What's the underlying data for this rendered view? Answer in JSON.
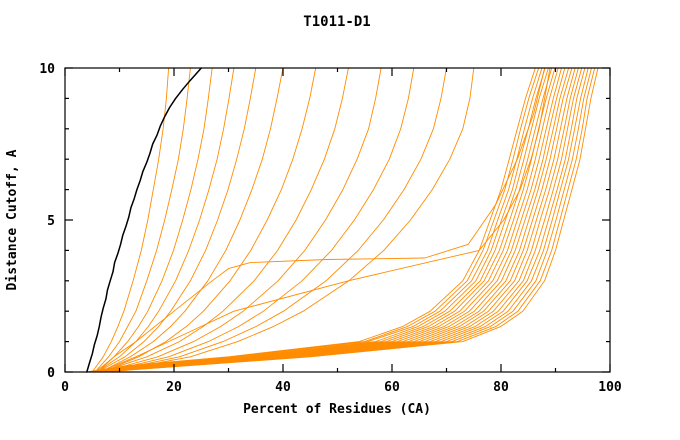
{
  "figure": {
    "title": "T1011-D1"
  },
  "chart_data": {
    "type": "line",
    "title": "T1011-D1",
    "xlabel": "Percent of Residues (CA)",
    "ylabel": "Distance Cutoff, A",
    "xlim": [
      0,
      100
    ],
    "ylim": [
      0,
      10
    ],
    "grid": false,
    "legend": "none",
    "colors": {
      "model": "#ff8c00",
      "reference": "#000000",
      "axis": "#000000"
    },
    "x_ticks": {
      "major": [
        0,
        20,
        40,
        60,
        80,
        100
      ],
      "minor": [
        10,
        30,
        50,
        70,
        90
      ],
      "labels": [
        "0",
        "20",
        "40",
        "60",
        "80",
        "100"
      ]
    },
    "y_ticks": {
      "major": [
        0,
        5,
        10
      ],
      "minor": [
        1,
        2,
        3,
        4,
        6,
        7,
        8,
        9
      ],
      "labels": [
        "0",
        "5",
        "10"
      ]
    },
    "y_levels": [
      0,
      0.2,
      0.5,
      1,
      1.5,
      2,
      3,
      4,
      5,
      6,
      7,
      8,
      9,
      10
    ],
    "series": [
      {
        "name": "reference",
        "role": "reference",
        "y": [
          0,
          0.3,
          0.6,
          0.9,
          1.2,
          1.5,
          1.8,
          2.1,
          2.4,
          2.7,
          3.0,
          3.3,
          3.6,
          3.9,
          4.2,
          4.5,
          4.8,
          5.1,
          5.4,
          5.7,
          6.0,
          6.3,
          6.6,
          6.9,
          7.2,
          7.5,
          7.8,
          8.1,
          8.4,
          8.7,
          9.0,
          9.3,
          9.6,
          10
        ],
        "x": [
          4.0,
          4.5,
          5.0,
          5.4,
          5.9,
          6.3,
          6.6,
          7.0,
          7.5,
          7.8,
          8.3,
          8.8,
          9.1,
          9.7,
          10.2,
          10.6,
          11.2,
          11.7,
          12.1,
          12.7,
          13.2,
          13.8,
          14.3,
          15.0,
          15.6,
          16.1,
          16.9,
          17.5,
          18.3,
          19.2,
          20.3,
          21.6,
          23.0,
          25.0
        ]
      },
      {
        "name": "model-01",
        "role": "model",
        "x": [
          5.0,
          5.8,
          7.0,
          8.5,
          9.7,
          10.8,
          12.5,
          14.0,
          15.2,
          16.2,
          17.2,
          18.0,
          18.6,
          19.0
        ]
      },
      {
        "name": "model-02",
        "role": "model",
        "x": [
          5.5,
          6.5,
          8.0,
          10.0,
          11.5,
          13.0,
          15.0,
          16.8,
          18.3,
          19.6,
          20.8,
          21.7,
          22.4,
          23.0
        ]
      },
      {
        "name": "model-03",
        "role": "model",
        "x": [
          5.5,
          7.0,
          9.0,
          11.5,
          13.5,
          15.2,
          17.8,
          19.9,
          21.6,
          23.1,
          24.4,
          25.5,
          26.3,
          27.0
        ]
      },
      {
        "name": "model-04",
        "role": "model",
        "x": [
          6.0,
          7.5,
          10.0,
          13.0,
          15.3,
          17.2,
          20.3,
          22.7,
          24.7,
          26.4,
          27.9,
          29.1,
          30.1,
          31.0
        ]
      },
      {
        "name": "model-05",
        "role": "model",
        "x": [
          6.0,
          8.0,
          11.0,
          14.5,
          17.2,
          19.4,
          23.0,
          25.8,
          28.0,
          29.9,
          31.5,
          32.9,
          34.0,
          35.0
        ]
      },
      {
        "name": "model-06",
        "role": "model",
        "x": [
          6.5,
          8.7,
          12.0,
          16.2,
          19.4,
          22.0,
          26.2,
          29.5,
          32.1,
          34.3,
          36.2,
          37.7,
          38.9,
          40.0
        ]
      },
      {
        "name": "model-07",
        "role": "model",
        "x": [
          7.0,
          9.5,
          13.5,
          18.5,
          22.3,
          25.4,
          30.3,
          34.1,
          37.1,
          39.7,
          41.8,
          43.5,
          44.9,
          46.0
        ]
      },
      {
        "name": "model-08",
        "role": "model",
        "x": [
          7.0,
          10.0,
          15.0,
          21.0,
          25.4,
          29.0,
          34.7,
          39.0,
          42.4,
          45.2,
          47.6,
          49.5,
          50.9,
          52.0
        ]
      },
      {
        "name": "model-09",
        "role": "model",
        "x": [
          7.5,
          11.0,
          17.0,
          23.6,
          28.6,
          32.7,
          39.1,
          44.0,
          47.8,
          51.0,
          53.6,
          55.7,
          57.0,
          58.0
        ]
      },
      {
        "name": "model-10",
        "role": "model",
        "x": [
          8.0,
          12.0,
          19.0,
          26.3,
          31.9,
          36.4,
          43.5,
          48.9,
          53.1,
          56.6,
          59.5,
          61.6,
          63.0,
          64.0
        ]
      },
      {
        "name": "model-11",
        "role": "model",
        "x": [
          8.0,
          13.0,
          21.0,
          29.0,
          35.1,
          40.1,
          47.9,
          53.8,
          58.4,
          62.2,
          65.3,
          67.6,
          69.0,
          70.0
        ]
      },
      {
        "name": "model-12",
        "role": "model",
        "x": [
          8.5,
          14.0,
          23.0,
          31.7,
          38.3,
          43.7,
          52.1,
          58.5,
          63.4,
          67.4,
          70.6,
          73.0,
          74.3,
          75.0
        ]
      },
      {
        "name": "model-13",
        "role": "model",
        "y": [
          0,
          0.5,
          1,
          2,
          3,
          3.4,
          3.6,
          3.7,
          3.75,
          4.2,
          5.5,
          7,
          8.5,
          10
        ],
        "x": [
          6.0,
          9.0,
          13.0,
          20.0,
          27.0,
          30.0,
          34.0,
          48.0,
          66.0,
          74.0,
          79.0,
          83.0,
          86.0,
          88.0
        ]
      },
      {
        "name": "model-14",
        "role": "model",
        "x": [
          6.5,
          9.0,
          13.0,
          19.0,
          25.0,
          31.0,
          52.0,
          76.0,
          80.5,
          83.5,
          85.5,
          87.0,
          88.0,
          89.0
        ]
      },
      {
        "name": "model-15",
        "role": "model",
        "x": [
          4.0,
          11.0,
          30.0,
          54.0,
          62.0,
          67.0,
          73.0,
          76.0,
          78.0,
          80.0,
          81.5,
          83.0,
          84.5,
          86.3
        ]
      },
      {
        "name": "model-16",
        "role": "model",
        "x": [
          4.2,
          11.6,
          30.8,
          55.0,
          62.9,
          67.9,
          73.8,
          76.7,
          78.7,
          80.7,
          82.2,
          83.6,
          85.1,
          86.9
        ]
      },
      {
        "name": "model-17",
        "role": "model",
        "x": [
          4.3,
          12.2,
          31.6,
          55.6,
          63.9,
          68.8,
          74.6,
          77.5,
          79.4,
          81.4,
          82.9,
          84.3,
          85.8,
          87.5
        ]
      },
      {
        "name": "model-18",
        "role": "model",
        "x": [
          4.5,
          12.7,
          32.4,
          57.0,
          64.8,
          69.7,
          75.4,
          78.2,
          80.1,
          82.1,
          83.5,
          85.0,
          86.4,
          88.1
        ]
      },
      {
        "name": "model-19",
        "role": "model",
        "x": [
          4.6,
          13.3,
          33.6,
          58.0,
          65.8,
          70.6,
          76.2,
          78.9,
          80.8,
          82.7,
          84.2,
          85.6,
          87.0,
          88.7
        ]
      },
      {
        "name": "model-20",
        "role": "model",
        "x": [
          4.8,
          13.9,
          33.9,
          59.0,
          66.7,
          71.5,
          76.9,
          79.7,
          81.6,
          83.4,
          84.9,
          86.3,
          87.7,
          89.3
        ]
      },
      {
        "name": "model-21",
        "role": "model",
        "x": [
          4.9,
          14.5,
          34.7,
          60.0,
          67.7,
          72.4,
          77.7,
          80.4,
          82.3,
          84.1,
          85.6,
          86.9,
          88.3,
          89.9
        ]
      },
      {
        "name": "model-22",
        "role": "model",
        "x": [
          5.1,
          15.0,
          35.5,
          61.0,
          68.6,
          73.3,
          78.5,
          81.2,
          83.0,
          84.8,
          86.3,
          87.6,
          88.9,
          90.5
        ]
      },
      {
        "name": "model-23",
        "role": "model",
        "x": [
          5.3,
          15.6,
          36.3,
          62.0,
          69.6,
          74.2,
          79.3,
          81.9,
          83.7,
          85.5,
          87.0,
          88.3,
          89.6,
          91.1
        ]
      },
      {
        "name": "model-24",
        "role": "model",
        "x": [
          5.4,
          16.2,
          37.1,
          63.0,
          70.5,
          75.1,
          80.1,
          82.6,
          84.4,
          86.2,
          87.7,
          88.9,
          90.2,
          91.7
        ]
      },
      {
        "name": "model-25",
        "role": "model",
        "x": [
          5.6,
          16.8,
          37.9,
          64.0,
          71.5,
          76.0,
          80.9,
          83.4,
          85.1,
          86.8,
          88.3,
          89.6,
          90.8,
          92.4
        ]
      },
      {
        "name": "model-26",
        "role": "model",
        "x": [
          5.7,
          17.4,
          38.7,
          65.0,
          72.4,
          76.8,
          81.7,
          84.1,
          85.8,
          87.5,
          89.0,
          90.2,
          91.4,
          93.0
        ]
      },
      {
        "name": "model-27",
        "role": "model",
        "x": [
          5.9,
          17.9,
          39.5,
          66.0,
          73.4,
          77.7,
          82.5,
          84.8,
          86.5,
          88.2,
          89.7,
          90.9,
          92.1,
          93.6
        ]
      },
      {
        "name": "model-28",
        "role": "model",
        "x": [
          6.1,
          18.5,
          40.3,
          67.0,
          74.3,
          78.6,
          83.3,
          85.6,
          87.2,
          88.9,
          90.4,
          91.6,
          92.7,
          94.2
        ]
      },
      {
        "name": "model-29",
        "role": "model",
        "x": [
          6.2,
          19.1,
          41.1,
          68.0,
          75.3,
          79.5,
          84.1,
          86.3,
          88.0,
          89.6,
          91.1,
          92.2,
          93.3,
          94.8
        ]
      },
      {
        "name": "model-30",
        "role": "model",
        "x": [
          6.4,
          19.7,
          41.8,
          69.0,
          76.2,
          80.4,
          84.8,
          87.1,
          88.7,
          90.3,
          91.8,
          92.9,
          93.9,
          95.4
        ]
      },
      {
        "name": "model-31",
        "role": "model",
        "x": [
          6.5,
          20.3,
          42.6,
          70.0,
          77.2,
          81.3,
          85.6,
          87.8,
          89.4,
          90.9,
          92.4,
          93.5,
          94.6,
          96.0
        ]
      },
      {
        "name": "model-32",
        "role": "model",
        "x": [
          6.7,
          20.8,
          43.4,
          71.0,
          78.1,
          82.2,
          86.4,
          88.5,
          90.1,
          91.6,
          93.1,
          94.2,
          95.2,
          96.6
        ]
      },
      {
        "name": "model-33",
        "role": "model",
        "x": [
          6.8,
          21.4,
          44.2,
          72.0,
          79.1,
          83.1,
          87.2,
          89.3,
          90.8,
          92.3,
          93.8,
          94.9,
          95.8,
          97.2
        ]
      },
      {
        "name": "model-34",
        "role": "model",
        "x": [
          7.0,
          22.0,
          45.0,
          73.0,
          80.0,
          84.0,
          88.0,
          90.0,
          91.5,
          93.0,
          94.5,
          95.5,
          96.5,
          97.8
        ]
      }
    ]
  }
}
